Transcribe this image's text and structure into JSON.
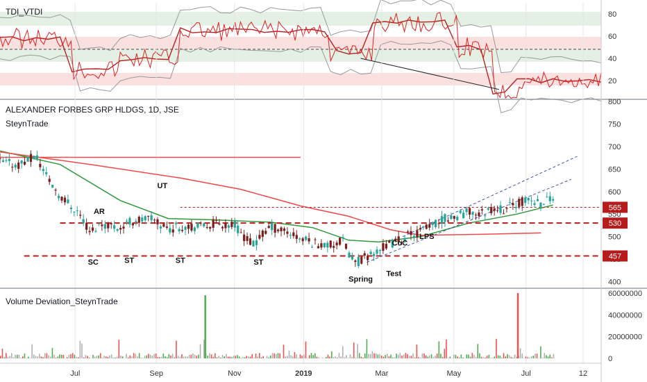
{
  "colors": {
    "up": "#26a69a",
    "down": "#8b1a1a",
    "candle_body": "#7a1f1f",
    "ma_green": "#2e9a3a",
    "ma_red": "#f04848",
    "level_red": "#b71c1c",
    "tdi_red": "#e02020",
    "tdi_signal": "#b22222",
    "band_gray": "#999999",
    "zone_green": "#e3f0e3",
    "zone_red": "#fbe0e0",
    "channel_blue": "#3f51b5",
    "volume_red": "#ef5350",
    "volume_green": "#4caf50",
    "volume_gray": "#b0b0b0",
    "grid": "#e6e6e6",
    "axis_text": "#333333"
  },
  "tdi_panel": {
    "title": "TDI_VTDI",
    "y_ticks": [
      "80",
      "60",
      "40",
      "20"
    ],
    "midline": 50
  },
  "price_panel": {
    "title": "ALEXANDER FORBES GRP HLDGS, 1D, JSE",
    "subtitle": "SteynTrade",
    "y_ticks": [
      "800",
      "750",
      "700",
      "650",
      "600",
      "550",
      "500",
      "450",
      "400"
    ],
    "level_tags": [
      "565",
      "530",
      "457"
    ],
    "annotations": [
      "UT",
      "AR",
      "SC",
      "ST",
      "ST",
      "ST",
      "Spring",
      "Test",
      "CoC",
      "LPS"
    ]
  },
  "volume_panel": {
    "title": "Volume Deviation_SteynTrade",
    "y_ticks": [
      "60000000",
      "40000000",
      "20000000",
      "0"
    ]
  },
  "x_axis": {
    "labels": [
      "Jul",
      "Sep",
      "Nov",
      "2019",
      "Mar",
      "May",
      "Jul",
      "12"
    ]
  },
  "chart_data": {
    "type": "candlestick",
    "title": "ALEXANDER FORBES GRP HLDGS, 1D, JSE",
    "ylim": [
      390,
      800
    ],
    "x_range": [
      "2018-04-20",
      "2019-07-20"
    ],
    "horizontal_levels": [
      565,
      530,
      457
    ],
    "moving_averages": [
      {
        "color": "green",
        "points": [
          [
            0,
            690
          ],
          [
            0.1,
            660
          ],
          [
            0.2,
            580
          ],
          [
            0.28,
            540
          ],
          [
            0.36,
            537
          ],
          [
            0.45,
            532
          ],
          [
            0.52,
            520
          ],
          [
            0.58,
            492
          ],
          [
            0.63,
            488
          ],
          [
            0.7,
            500
          ],
          [
            0.78,
            530
          ],
          [
            0.86,
            550
          ],
          [
            0.92,
            570
          ]
        ]
      },
      {
        "color": "red",
        "points": [
          [
            0,
            688
          ],
          [
            0.15,
            660
          ],
          [
            0.3,
            630
          ],
          [
            0.4,
            605
          ],
          [
            0.5,
            568
          ],
          [
            0.58,
            545
          ],
          [
            0.65,
            515
          ],
          [
            0.7,
            503
          ],
          [
            0.8,
            505
          ],
          [
            0.9,
            508
          ]
        ]
      }
    ],
    "resistance_line": {
      "value": 676,
      "from": 0.0,
      "to": 0.5
    },
    "channel": {
      "lower": [
        [
          0.61,
          443
        ],
        [
          0.95,
          627
        ]
      ],
      "upper": [
        [
          0.67,
          500
        ],
        [
          0.96,
          678
        ]
      ]
    },
    "price_path": [
      [
        0.0,
        665
      ],
      [
        0.03,
        660
      ],
      [
        0.06,
        678
      ],
      [
        0.08,
        630
      ],
      [
        0.1,
        590
      ],
      [
        0.13,
        555
      ],
      [
        0.15,
        510
      ],
      [
        0.17,
        530
      ],
      [
        0.2,
        520
      ],
      [
        0.22,
        535
      ],
      [
        0.25,
        540
      ],
      [
        0.28,
        518
      ],
      [
        0.31,
        525
      ],
      [
        0.33,
        520
      ],
      [
        0.36,
        530
      ],
      [
        0.39,
        525
      ],
      [
        0.42,
        480
      ],
      [
        0.45,
        522
      ],
      [
        0.48,
        510
      ],
      [
        0.5,
        495
      ],
      [
        0.52,
        487
      ],
      [
        0.55,
        480
      ],
      [
        0.57,
        490
      ],
      [
        0.59,
        440
      ],
      [
        0.61,
        455
      ],
      [
        0.63,
        470
      ],
      [
        0.66,
        490
      ],
      [
        0.68,
        503
      ],
      [
        0.7,
        512
      ],
      [
        0.72,
        525
      ],
      [
        0.74,
        540
      ],
      [
        0.76,
        545
      ],
      [
        0.78,
        555
      ],
      [
        0.8,
        550
      ],
      [
        0.82,
        565
      ],
      [
        0.84,
        560
      ],
      [
        0.86,
        575
      ],
      [
        0.88,
        580
      ],
      [
        0.9,
        575
      ],
      [
        0.92,
        590
      ]
    ],
    "volume_spikes": [
      [
        0.34,
        58000000
      ],
      [
        0.86,
        60000000
      ]
    ]
  }
}
